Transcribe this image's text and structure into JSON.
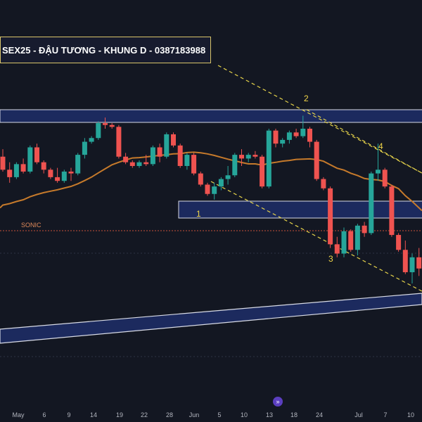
{
  "title": "SEX25 - ĐẬU TƯƠNG - KHUNG D - 0387183988",
  "indicator_label": "SONIC",
  "nav_icon": "double-chevron-right-icon",
  "colors": {
    "background": "#131722",
    "up": "#26a69a",
    "down": "#ef5350",
    "ma_line": "#c67a2b",
    "zone_fill": "#1c2a5e",
    "zone_border": "#d8dbe6",
    "trend_dashed": "#e6d34a",
    "wave_label": "#f2d648",
    "sonic_line": "#c8523a",
    "title_border": "#d9c46a"
  },
  "x_axis_labels": [
    "May",
    "6",
    "9",
    "14",
    "19",
    "22",
    "28",
    "Jun",
    "5",
    "10",
    "13",
    "18",
    "24",
    "Jul",
    "7",
    "10"
  ],
  "wave_labels": [
    "1",
    "2",
    "3",
    "4"
  ],
  "chart_data": {
    "type": "candlestick",
    "title": "SEX25 - ĐẬU TƯƠNG - KHUNG D - 0387183988",
    "ylim": [
      0,
      100
    ],
    "grid": false,
    "candles": [
      {
        "o": 65,
        "h": 69,
        "l": 57,
        "c": 58
      },
      {
        "o": 58,
        "h": 62,
        "l": 51,
        "c": 54
      },
      {
        "o": 54,
        "h": 62,
        "l": 53,
        "c": 61
      },
      {
        "o": 61,
        "h": 64,
        "l": 56,
        "c": 57
      },
      {
        "o": 57,
        "h": 71,
        "l": 56,
        "c": 70
      },
      {
        "o": 70,
        "h": 72,
        "l": 61,
        "c": 62
      },
      {
        "o": 62,
        "h": 63,
        "l": 56,
        "c": 58
      },
      {
        "o": 58,
        "h": 59,
        "l": 53,
        "c": 54
      },
      {
        "o": 54,
        "h": 59,
        "l": 51,
        "c": 52
      },
      {
        "o": 52,
        "h": 58,
        "l": 51,
        "c": 57
      },
      {
        "o": 57,
        "h": 59,
        "l": 52,
        "c": 56
      },
      {
        "o": 56,
        "h": 67,
        "l": 55,
        "c": 66
      },
      {
        "o": 66,
        "h": 75,
        "l": 64,
        "c": 73
      },
      {
        "o": 73,
        "h": 76,
        "l": 72,
        "c": 75
      },
      {
        "o": 75,
        "h": 84,
        "l": 74,
        "c": 83
      },
      {
        "o": 83,
        "h": 86,
        "l": 80,
        "c": 82
      },
      {
        "o": 82,
        "h": 83,
        "l": 80,
        "c": 81
      },
      {
        "o": 81,
        "h": 82,
        "l": 64,
        "c": 65
      },
      {
        "o": 65,
        "h": 67,
        "l": 61,
        "c": 62
      },
      {
        "o": 62,
        "h": 63,
        "l": 59,
        "c": 60
      },
      {
        "o": 60,
        "h": 63,
        "l": 59,
        "c": 62
      },
      {
        "o": 62,
        "h": 66,
        "l": 60,
        "c": 61
      },
      {
        "o": 61,
        "h": 71,
        "l": 60,
        "c": 70
      },
      {
        "o": 70,
        "h": 72,
        "l": 62,
        "c": 65
      },
      {
        "o": 65,
        "h": 78,
        "l": 64,
        "c": 77
      },
      {
        "o": 77,
        "h": 78,
        "l": 70,
        "c": 71
      },
      {
        "o": 71,
        "h": 72,
        "l": 59,
        "c": 60
      },
      {
        "o": 60,
        "h": 67,
        "l": 58,
        "c": 66
      },
      {
        "o": 66,
        "h": 67,
        "l": 55,
        "c": 56
      },
      {
        "o": 56,
        "h": 57,
        "l": 49,
        "c": 50
      },
      {
        "o": 50,
        "h": 51,
        "l": 44,
        "c": 45
      },
      {
        "o": 45,
        "h": 51,
        "l": 42,
        "c": 49
      },
      {
        "o": 49,
        "h": 54,
        "l": 47,
        "c": 53
      },
      {
        "o": 53,
        "h": 60,
        "l": 50,
        "c": 55
      },
      {
        "o": 55,
        "h": 67,
        "l": 54,
        "c": 66
      },
      {
        "o": 66,
        "h": 69,
        "l": 60,
        "c": 64
      },
      {
        "o": 64,
        "h": 67,
        "l": 62,
        "c": 66
      },
      {
        "o": 66,
        "h": 68,
        "l": 64,
        "c": 65
      },
      {
        "o": 65,
        "h": 66,
        "l": 48,
        "c": 49
      },
      {
        "o": 49,
        "h": 80,
        "l": 48,
        "c": 79
      },
      {
        "o": 79,
        "h": 80,
        "l": 70,
        "c": 72
      },
      {
        "o": 72,
        "h": 75,
        "l": 70,
        "c": 74
      },
      {
        "o": 74,
        "h": 79,
        "l": 72,
        "c": 78
      },
      {
        "o": 78,
        "h": 80,
        "l": 75,
        "c": 76
      },
      {
        "o": 76,
        "h": 87,
        "l": 75,
        "c": 80
      },
      {
        "o": 80,
        "h": 81,
        "l": 70,
        "c": 73
      },
      {
        "o": 73,
        "h": 74,
        "l": 52,
        "c": 53
      },
      {
        "o": 53,
        "h": 54,
        "l": 47,
        "c": 48
      },
      {
        "o": 48,
        "h": 49,
        "l": 16,
        "c": 18
      },
      {
        "o": 18,
        "h": 22,
        "l": 11,
        "c": 13
      },
      {
        "o": 13,
        "h": 27,
        "l": 11,
        "c": 25
      },
      {
        "o": 25,
        "h": 26,
        "l": 14,
        "c": 15
      },
      {
        "o": 15,
        "h": 29,
        "l": 12,
        "c": 28
      },
      {
        "o": 28,
        "h": 30,
        "l": 22,
        "c": 24
      },
      {
        "o": 24,
        "h": 57,
        "l": 23,
        "c": 56
      },
      {
        "o": 56,
        "h": 72,
        "l": 52,
        "c": 58
      },
      {
        "o": 58,
        "h": 59,
        "l": 48,
        "c": 49
      },
      {
        "o": 49,
        "h": 50,
        "l": 22,
        "c": 23
      },
      {
        "o": 23,
        "h": 24,
        "l": 14,
        "c": 15
      },
      {
        "o": 15,
        "h": 20,
        "l": 2,
        "c": 3
      },
      {
        "o": 3,
        "h": 13,
        "l": -3,
        "c": 11
      },
      {
        "o": 11,
        "h": 16,
        "l": 1,
        "c": 5
      }
    ]
  }
}
